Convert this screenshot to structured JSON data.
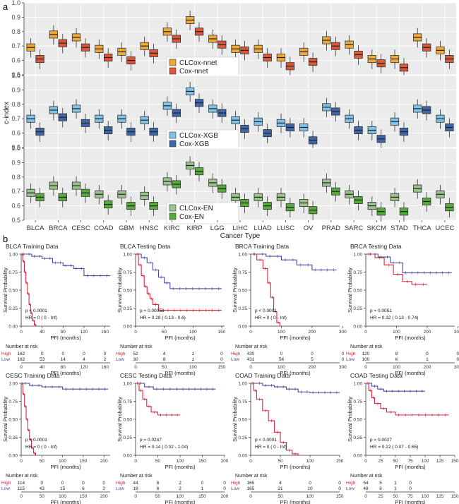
{
  "panel_labels": {
    "a": "a",
    "b": "b"
  },
  "colors": {
    "nnet_cl": "#EFA93A",
    "nnet_cox": "#D9573A",
    "xgb_cl": "#7FC3EA",
    "xgb_cox": "#3F66A8",
    "en_cl": "#9BC38C",
    "en_cox": "#56AA3C",
    "high": "#D7263D",
    "low": "#4A4A9C",
    "panel_bg": "#EBEBEB"
  },
  "chart_data": [
    {
      "type": "box",
      "ylabel": "c-index",
      "xlabel": "Cancer Type",
      "ylim": [
        0.5,
        1.0
      ],
      "yticks": [
        0.5,
        0.6,
        0.7,
        0.8,
        0.9,
        1.0
      ],
      "categories": [
        "BLCA",
        "BRCA",
        "CESC",
        "COAD",
        "GBM",
        "HNSC",
        "KIRC",
        "KIRP",
        "LGG",
        "LIHC",
        "LUAD",
        "LUSC",
        "OV",
        "PRAD",
        "SARC",
        "SKCM",
        "STAD",
        "THCA",
        "UCEC"
      ],
      "panels": [
        {
          "legend": [
            "CLCox-nnet",
            "Cox-nnet"
          ],
          "colorKeys": [
            "nnet_cl",
            "nnet_cox"
          ],
          "medians": [
            [
              0.69,
              0.61
            ],
            [
              0.78,
              0.72
            ],
            [
              0.76,
              0.69
            ],
            [
              0.68,
              0.62
            ],
            [
              0.66,
              0.6
            ],
            [
              0.7,
              0.65
            ],
            [
              0.8,
              0.75
            ],
            [
              0.88,
              0.8
            ],
            [
              0.75,
              0.71
            ],
            [
              0.68,
              0.67
            ],
            [
              0.68,
              0.62
            ],
            [
              0.62,
              0.56
            ],
            [
              0.66,
              0.59
            ],
            [
              0.74,
              0.7
            ],
            [
              0.71,
              0.64
            ],
            [
              0.61,
              0.58
            ],
            [
              0.61,
              0.55
            ],
            [
              0.76,
              0.69
            ],
            [
              0.67,
              0.61
            ]
          ]
        },
        {
          "legend": [
            "CLCox-XGB",
            "Cox-XGB"
          ],
          "colorKeys": [
            "xgb_cl",
            "xgb_cox"
          ],
          "medians": [
            [
              0.7,
              0.61
            ],
            [
              0.76,
              0.71
            ],
            [
              0.77,
              0.67
            ],
            [
              0.7,
              0.62
            ],
            [
              0.7,
              0.61
            ],
            [
              0.69,
              0.61
            ],
            [
              0.79,
              0.74
            ],
            [
              0.89,
              0.81
            ],
            [
              0.77,
              0.74
            ],
            [
              0.69,
              0.63
            ],
            [
              0.68,
              0.6
            ],
            [
              0.67,
              0.64
            ],
            [
              0.64,
              0.55
            ],
            [
              0.78,
              0.75
            ],
            [
              0.7,
              0.62
            ],
            [
              0.62,
              0.56
            ],
            [
              0.68,
              0.61
            ],
            [
              0.77,
              0.76
            ],
            [
              0.7,
              0.64
            ]
          ]
        },
        {
          "legend": [
            "CLCox-EN",
            "Cox-EN"
          ],
          "colorKeys": [
            "en_cl",
            "en_cox"
          ],
          "medians": [
            [
              0.69,
              0.66
            ],
            [
              0.74,
              0.66
            ],
            [
              0.74,
              0.69
            ],
            [
              0.68,
              0.61
            ],
            [
              0.68,
              0.6
            ],
            [
              0.67,
              0.6
            ],
            [
              0.77,
              0.75
            ],
            [
              0.88,
              0.84
            ],
            [
              0.76,
              0.72
            ],
            [
              0.66,
              0.62
            ],
            [
              0.66,
              0.6
            ],
            [
              0.66,
              0.59
            ],
            [
              0.62,
              0.57
            ],
            [
              0.76,
              0.7
            ],
            [
              0.68,
              0.64
            ],
            [
              0.6,
              0.56
            ],
            [
              0.66,
              0.56
            ],
            [
              0.72,
              0.63
            ],
            [
              0.68,
              0.59
            ]
          ]
        }
      ]
    },
    {
      "type": "kaplan-meier",
      "ylabel": "Survival Probability",
      "xlabel": "PFI (months)",
      "risk_title": "Number at risk",
      "risk_labels": [
        "High",
        "Low"
      ],
      "yticks": [
        0.0,
        0.25,
        0.5,
        0.75,
        1.0
      ],
      "ytick_labels": [
        "0.00",
        "0.25",
        "0.50",
        "0.75",
        "1.00"
      ],
      "plots": [
        {
          "title": "BLCA Training Data",
          "p": "p < 0.0001",
          "hr": "HR = 0 ( 0 - Inf)",
          "xmax": 170,
          "xticks": [
            0,
            40,
            80,
            120,
            160
          ],
          "high": [
            [
              0,
              1
            ],
            [
              3,
              0.9
            ],
            [
              6,
              0.75
            ],
            [
              9,
              0.6
            ],
            [
              12,
              0.45
            ],
            [
              15,
              0.3
            ],
            [
              18,
              0.18
            ],
            [
              21,
              0.08
            ],
            [
              25,
              0.02
            ],
            [
              28,
              0
            ]
          ],
          "low": [
            [
              0,
              1
            ],
            [
              20,
              0.97
            ],
            [
              40,
              0.94
            ],
            [
              60,
              0.88
            ],
            [
              80,
              0.84
            ],
            [
              100,
              0.8
            ],
            [
              120,
              0.7
            ],
            [
              170,
              0.7
            ]
          ],
          "risk_high": [
            "162",
            "0",
            "0",
            "0",
            "0"
          ],
          "risk_low": [
            "162",
            "53",
            "14",
            "4",
            "2"
          ]
        },
        {
          "title": "BLCA Testing Data",
          "p": "p = 0.00053",
          "hr": "HR = 0.28  ( 0.13 - 0.6)",
          "xmax": 155,
          "xticks": [
            0,
            50,
            100,
            150
          ],
          "high": [
            [
              0,
              1
            ],
            [
              5,
              0.85
            ],
            [
              10,
              0.7
            ],
            [
              15,
              0.55
            ],
            [
              20,
              0.45
            ],
            [
              25,
              0.38
            ],
            [
              30,
              0.3
            ],
            [
              40,
              0.22
            ],
            [
              150,
              0.22
            ]
          ],
          "low": [
            [
              0,
              1
            ],
            [
              10,
              0.95
            ],
            [
              20,
              0.88
            ],
            [
              30,
              0.78
            ],
            [
              40,
              0.68
            ],
            [
              50,
              0.6
            ],
            [
              60,
              0.52
            ],
            [
              150,
              0.52
            ]
          ],
          "risk_high": [
            "52",
            "4",
            "1",
            "0"
          ],
          "risk_low": [
            "30",
            "8",
            "1",
            "0"
          ]
        },
        {
          "title": "BRCA Training Data",
          "p": "p < 0.0001",
          "hr": "HR = 0  ( 0 - Inf)",
          "xmax": 290,
          "xticks": [
            0,
            100,
            200,
            300
          ],
          "high": [
            [
              0,
              1
            ],
            [
              20,
              0.92
            ],
            [
              40,
              0.8
            ],
            [
              55,
              0.6
            ],
            [
              65,
              0.4
            ],
            [
              75,
              0.2
            ],
            [
              85,
              0.05
            ],
            [
              95,
              0
            ]
          ],
          "low": [
            [
              0,
              1
            ],
            [
              50,
              0.97
            ],
            [
              100,
              0.92
            ],
            [
              150,
              0.85
            ],
            [
              200,
              0.78
            ],
            [
              280,
              0.78
            ]
          ],
          "risk_high": [
            "430",
            "0",
            "0",
            "0"
          ],
          "risk_low": [
            "431",
            "56",
            "5",
            "0"
          ]
        },
        {
          "title": "BRCA Testing Data",
          "p": "p = 0.0051",
          "hr": "HR = 0.32  ( 0.13 - 0.74)",
          "xmax": 290,
          "xticks": [
            0,
            100,
            200,
            300
          ],
          "high": [
            [
              0,
              1
            ],
            [
              30,
              0.95
            ],
            [
              60,
              0.85
            ],
            [
              90,
              0.72
            ],
            [
              120,
              0.62
            ],
            [
              150,
              0.58
            ],
            [
              200,
              0.58
            ]
          ],
          "low": [
            [
              0,
              1
            ],
            [
              40,
              0.96
            ],
            [
              80,
              0.88
            ],
            [
              120,
              0.74
            ],
            [
              200,
              0.74
            ],
            [
              280,
              0.74
            ]
          ],
          "risk_high": [
            "120",
            "8",
            "0",
            "0"
          ],
          "risk_low": [
            "100",
            "6",
            "1",
            "0"
          ]
        },
        {
          "title": "CESC Training Data",
          "p": "p < 0.0001",
          "hr": "HR = 0  ( 0 - Inf)",
          "xmax": 215,
          "xticks": [
            0,
            50,
            100,
            150,
            200
          ],
          "high": [
            [
              0,
              1
            ],
            [
              4,
              0.85
            ],
            [
              8,
              0.68
            ],
            [
              12,
              0.5
            ],
            [
              16,
              0.35
            ],
            [
              20,
              0.22
            ],
            [
              25,
              0.1
            ],
            [
              30,
              0.03
            ],
            [
              35,
              0
            ]
          ],
          "low": [
            [
              0,
              1
            ],
            [
              20,
              0.97
            ],
            [
              50,
              0.95
            ],
            [
              100,
              0.92
            ],
            [
              150,
              0.92
            ],
            [
              210,
              0.92
            ]
          ],
          "risk_high": [
            "114",
            "0",
            "0",
            "0",
            "0"
          ],
          "risk_low": [
            "115",
            "43",
            "15",
            "6",
            "2"
          ]
        },
        {
          "title": "CESC Testing Data",
          "p": "p = 0.0247",
          "hr": "HR = 0.14  ( 0.02 - 1.04)",
          "xmax": 200,
          "xticks": [
            0,
            50,
            100,
            150,
            200
          ],
          "high": [
            [
              0,
              1
            ],
            [
              8,
              0.9
            ],
            [
              16,
              0.78
            ],
            [
              25,
              0.68
            ],
            [
              35,
              0.6
            ],
            [
              50,
              0.56
            ],
            [
              100,
              0.56
            ]
          ],
          "low": [
            [
              0,
              1
            ],
            [
              20,
              0.95
            ],
            [
              40,
              0.92
            ],
            [
              100,
              0.92
            ],
            [
              180,
              0.92
            ]
          ],
          "risk_high": [
            "44",
            "6",
            "2",
            "0",
            "0"
          ],
          "risk_low": [
            "18",
            "6",
            "2",
            "1",
            "0"
          ]
        },
        {
          "title": "COAD Training Data",
          "p": "p < 0.0001",
          "hr": "HR = 0  ( 0 - Inf)",
          "xmax": 150,
          "xticks": [
            0,
            50,
            100,
            150
          ],
          "high": [
            [
              0,
              1
            ],
            [
              5,
              0.9
            ],
            [
              10,
              0.78
            ],
            [
              20,
              0.62
            ],
            [
              30,
              0.48
            ],
            [
              40,
              0.32
            ],
            [
              50,
              0.18
            ],
            [
              60,
              0.07
            ],
            [
              70,
              0.02
            ],
            [
              80,
              0
            ]
          ],
          "low": [
            [
              0,
              1
            ],
            [
              20,
              0.97
            ],
            [
              40,
              0.95
            ],
            [
              60,
              0.92
            ],
            [
              80,
              0.88
            ],
            [
              100,
              0.87
            ],
            [
              150,
              0.87
            ]
          ],
          "risk_high": [
            "165",
            "4",
            "0",
            "0"
          ],
          "risk_low": [
            "165",
            "31",
            "10",
            "0"
          ]
        },
        {
          "title": "COAD Testing Data",
          "p": "p = 0.0027",
          "hr": "HR = 0.22  ( 0.07 - 0.65)",
          "xmax": 150,
          "xticks": [
            0,
            25,
            50,
            75,
            100,
            125,
            150
          ],
          "high": [
            [
              0,
              1
            ],
            [
              5,
              0.9
            ],
            [
              10,
              0.8
            ],
            [
              15,
              0.72
            ],
            [
              25,
              0.65
            ],
            [
              35,
              0.6
            ],
            [
              50,
              0.56
            ],
            [
              140,
              0.56
            ]
          ],
          "low": [
            [
              0,
              1
            ],
            [
              10,
              0.96
            ],
            [
              20,
              0.92
            ],
            [
              30,
              0.89
            ],
            [
              100,
              0.89
            ]
          ],
          "risk_high": [
            "54",
            "5",
            "1",
            "0"
          ],
          "risk_low": [
            "48",
            "6",
            "1",
            "0"
          ]
        }
      ]
    }
  ]
}
